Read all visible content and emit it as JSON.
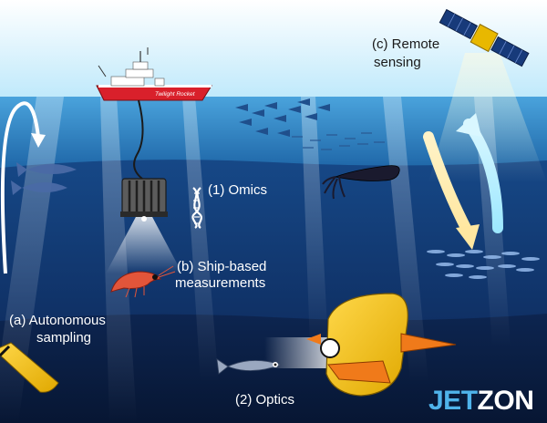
{
  "labels": {
    "remote_sensing_line1": "(c) Remote",
    "remote_sensing_line2": "sensing",
    "omics": "(1) Omics",
    "ship_based_line1": "(b) Ship-based",
    "ship_based_line2": "measurements",
    "autonomous_line1": "(a) Autonomous",
    "autonomous_line2": "sampling",
    "optics": "(2) Optics"
  },
  "ship_name": "Twilight Rocket",
  "logo": {
    "part1": "JET",
    "part2": "ZON"
  },
  "colors": {
    "sky_top": "#ffffff",
    "sky_horizon": "#bfe9fb",
    "surface_water": "#2f86c8",
    "twilight_zone": "#123c7a",
    "deep_water": "#0a1d40",
    "ship_hull": "#d9202b",
    "glider_yellow": "#f5c400",
    "logo_blue": "#4fb3ea"
  }
}
